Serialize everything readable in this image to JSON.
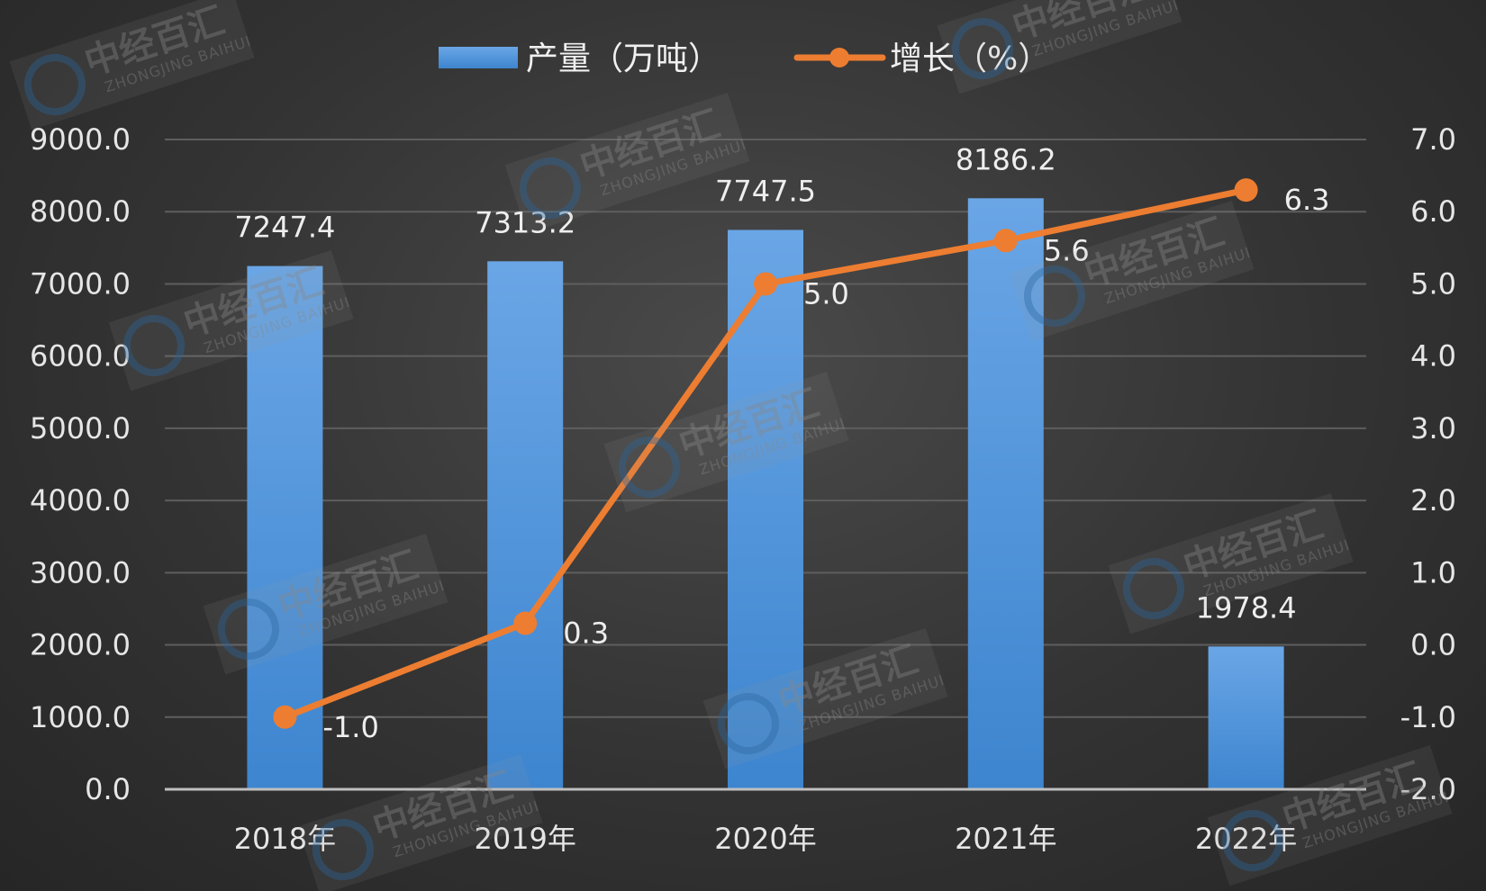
{
  "chart_data": {
    "type": "bar+line",
    "categories": [
      "2018年",
      "2019年",
      "2020年",
      "2021年",
      "2022年"
    ],
    "series": [
      {
        "name": "产量（万吨）",
        "type": "bar",
        "axis": "left",
        "values": [
          7247.4,
          7313.2,
          7747.5,
          8186.2,
          1978.4
        ],
        "color": "#4a90d9"
      },
      {
        "name": "增长（%）",
        "type": "line",
        "axis": "right",
        "values": [
          -1.0,
          0.3,
          5.0,
          5.6,
          6.3
        ],
        "color": "#ed7d31"
      }
    ],
    "y_left": {
      "ylim": [
        0,
        9000
      ],
      "ticks": [
        "0.0",
        "1000.0",
        "2000.0",
        "3000.0",
        "4000.0",
        "5000.0",
        "6000.0",
        "7000.0",
        "8000.0",
        "9000.0"
      ]
    },
    "y_right": {
      "ylim": [
        -2,
        7
      ],
      "ticks": [
        "-2.0",
        "-1.0",
        "0.0",
        "1.0",
        "2.0",
        "3.0",
        "4.0",
        "5.0",
        "6.0",
        "7.0"
      ]
    },
    "bar_labels": [
      "7247.4",
      "7313.2",
      "7747.5",
      "8186.2",
      "1978.4"
    ],
    "line_labels": [
      "-1.0",
      "0.3",
      "5.0",
      "5.6",
      "6.3"
    ],
    "legend_position": "top",
    "grid": true
  },
  "watermark": {
    "cn": "中经百汇",
    "en": "ZHONGJING BAIHUI",
    "logo": "zhongjing-logo-icon"
  }
}
